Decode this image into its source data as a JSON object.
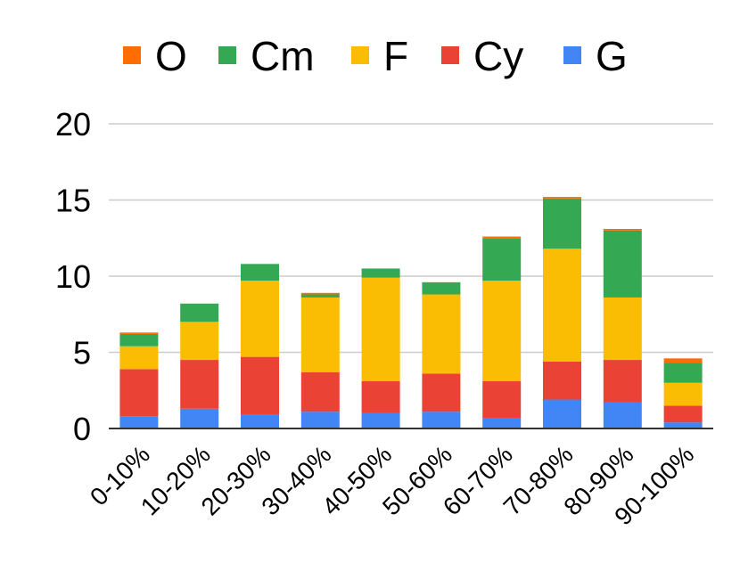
{
  "chart_data": {
    "type": "bar",
    "stacked": true,
    "title": "",
    "xlabel": "",
    "ylabel": "",
    "ylim": [
      0,
      20
    ],
    "yticks": [
      0,
      5,
      10,
      15,
      20
    ],
    "grid": true,
    "legend_position": "top",
    "categories": [
      "0-10%",
      "10-20%",
      "20-30%",
      "30-40%",
      "40-50%",
      "50-60%",
      "60-70%",
      "70-80%",
      "80-90%",
      "90-100%"
    ],
    "series": [
      {
        "name": "G",
        "color": "#4285f4",
        "values": [
          0.8,
          1.3,
          0.9,
          1.1,
          1.0,
          1.1,
          0.7,
          1.9,
          1.7,
          0.4
        ]
      },
      {
        "name": "Cy",
        "color": "#ea4335",
        "values": [
          3.1,
          3.2,
          3.8,
          2.6,
          2.1,
          2.5,
          2.4,
          2.5,
          2.8,
          1.1
        ]
      },
      {
        "name": "F",
        "color": "#fbbc04",
        "values": [
          1.5,
          2.5,
          5.0,
          4.9,
          6.8,
          5.2,
          6.6,
          7.4,
          4.1,
          1.5
        ]
      },
      {
        "name": "Cm",
        "color": "#34a853",
        "values": [
          0.8,
          1.2,
          1.1,
          0.2,
          0.6,
          0.8,
          2.8,
          3.3,
          4.4,
          1.3
        ]
      },
      {
        "name": "O",
        "color": "#ff6d01",
        "values": [
          0.1,
          0.0,
          0.0,
          0.1,
          0.0,
          0.0,
          0.1,
          0.1,
          0.1,
          0.3
        ]
      }
    ],
    "legend_order": [
      "O",
      "Cm",
      "F",
      "Cy",
      "G"
    ]
  }
}
